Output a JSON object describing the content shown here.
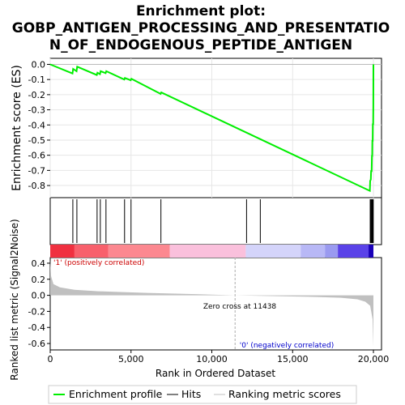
{
  "chart_data": {
    "type": "line",
    "title_line1": "Enrichment plot:",
    "title_line2": "GOBP_ANTIGEN_PROCESSING_AND_PRESENTATIO",
    "title_line3": "N_OF_ENDOGENOUS_PEPTIDE_ANTIGEN",
    "es_ylabel": "Enrichment score (ES)",
    "metric_ylabel": "Ranked list metric (Signal2Noise)",
    "xlabel": "Rank in Ordered Dataset",
    "xlim": [
      0,
      20500
    ],
    "es_ylim": [
      -0.88,
      0.04
    ],
    "metric_ylim": [
      -0.68,
      0.47
    ],
    "x_ticks": [
      0,
      5000,
      10000,
      15000,
      20000
    ],
    "x_tick_labels": [
      "0",
      "5,000",
      "10,000",
      "15,000",
      "20,000"
    ],
    "es_ticks": [
      0.0,
      -0.1,
      -0.2,
      -0.3,
      -0.4,
      -0.5,
      -0.6,
      -0.7,
      -0.8
    ],
    "es_tick_labels": [
      "0.0",
      "-0.1",
      "-0.2",
      "-0.3",
      "-0.4",
      "-0.5",
      "-0.6",
      "-0.7",
      "-0.8"
    ],
    "metric_ticks": [
      0.4,
      0.2,
      0.0,
      -0.2,
      -0.4,
      -0.6
    ],
    "metric_tick_labels": [
      "0.4",
      "0.2",
      "0.0",
      "-0.2",
      "-0.4",
      "-0.6"
    ],
    "hits": [
      1400,
      1650,
      2900,
      3100,
      3450,
      4600,
      5000,
      6850,
      12150,
      13000,
      19800,
      19850,
      19900,
      19930,
      19960,
      19990
    ],
    "es_curve": {
      "x": [
        0,
        1380,
        1420,
        1630,
        1670,
        2880,
        2920,
        3080,
        3120,
        3430,
        3470,
        4580,
        4620,
        4980,
        5020,
        6830,
        6870,
        19780,
        19800,
        19840,
        19860,
        19890,
        19910,
        19925,
        19935,
        19955,
        19965,
        19985,
        19995,
        20000
      ],
      "y": [
        0.0,
        -0.06,
        -0.03,
        -0.045,
        -0.015,
        -0.07,
        -0.055,
        -0.065,
        -0.045,
        -0.058,
        -0.045,
        -0.1,
        -0.09,
        -0.105,
        -0.095,
        -0.195,
        -0.185,
        -0.835,
        -0.77,
        -0.76,
        -0.7,
        -0.71,
        -0.6,
        -0.61,
        -0.5,
        -0.51,
        -0.39,
        -0.4,
        -0.27,
        0.0
      ]
    },
    "metric_curve": {
      "x": [
        0,
        50,
        200,
        600,
        1500,
        3000,
        6000,
        9000,
        11438,
        14000,
        16500,
        18000,
        19000,
        19500,
        19800,
        19950,
        20000
      ],
      "y": [
        0.44,
        0.24,
        0.14,
        0.1,
        0.07,
        0.05,
        0.03,
        0.015,
        0.0,
        -0.01,
        -0.02,
        -0.03,
        -0.05,
        -0.08,
        -0.13,
        -0.3,
        -0.64
      ]
    },
    "zero_cross": 11438,
    "zero_cross_label": "Zero cross at 11438",
    "pos_label": "'1' (positively correlated)",
    "neg_label": "'0' (negatively correlated)",
    "heat_bar": [
      {
        "from": 0,
        "to": 1500,
        "color": "#f03040"
      },
      {
        "from": 1500,
        "to": 3600,
        "color": "#f8606c"
      },
      {
        "from": 3600,
        "to": 7400,
        "color": "#fc8890"
      },
      {
        "from": 7400,
        "to": 12100,
        "color": "#fac0dc"
      },
      {
        "from": 12100,
        "to": 15500,
        "color": "#d4d4fa"
      },
      {
        "from": 15500,
        "to": 17000,
        "color": "#b8b8f6"
      },
      {
        "from": 17000,
        "to": 17800,
        "color": "#9a9af0"
      },
      {
        "from": 17800,
        "to": 19700,
        "color": "#5a42e8"
      },
      {
        "from": 19700,
        "to": 20000,
        "color": "#1a00b8"
      }
    ],
    "colors": {
      "es_line": "#00ee00",
      "hit_line": "#000000",
      "metric_fill": "#c0c0c0",
      "pos_text": "#cc0000",
      "neg_text": "#0000cc"
    },
    "legend": {
      "enrichment_label": "Enrichment profile",
      "hits_label": "Hits",
      "ranking_label": "Ranking metric scores"
    }
  }
}
